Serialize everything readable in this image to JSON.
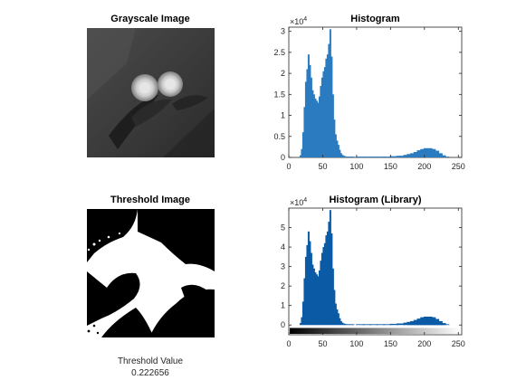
{
  "panels": {
    "gray": {
      "title": "Grayscale Image"
    },
    "thresh": {
      "title": "Threshold Image",
      "caption_label": "Threshold Value",
      "caption_value": "0.222656"
    }
  },
  "colors": {
    "bar": "#2b7bc0",
    "bar_dark": "#0b5aa6",
    "axis": "#262626"
  },
  "chart_data": [
    {
      "type": "bar",
      "title": "Histogram",
      "xlabel": "",
      "ylabel": "",
      "xlim": [
        0,
        255
      ],
      "ylim": [
        0,
        3.1
      ],
      "y_exponent": "×10",
      "y_exponent_power": "4",
      "xticks": [
        0,
        50,
        100,
        150,
        200,
        250
      ],
      "yticks": [
        0,
        0.5,
        1,
        1.5,
        2,
        2.5,
        3
      ],
      "ytick_labels": [
        "0",
        "0.5",
        "1",
        "1.5",
        "2",
        "2.5",
        "3"
      ],
      "x": [
        17,
        19,
        21,
        23,
        25,
        27,
        29,
        31,
        33,
        35,
        37,
        39,
        41,
        43,
        45,
        47,
        49,
        51,
        53,
        55,
        57,
        59,
        61,
        63,
        65,
        67,
        69,
        71,
        73,
        75,
        77,
        79,
        81,
        83,
        85,
        87,
        89,
        91,
        93,
        95,
        100,
        110,
        120,
        130,
        140,
        150,
        160,
        170,
        175,
        180,
        185,
        190,
        195,
        200,
        205,
        210,
        215,
        220,
        225
      ],
      "values": [
        0.05,
        0.2,
        0.6,
        1.2,
        1.8,
        2.1,
        2.45,
        2.2,
        1.9,
        1.6,
        1.5,
        1.4,
        1.35,
        1.3,
        1.45,
        1.7,
        1.9,
        2.05,
        2.15,
        2.35,
        2.45,
        2.7,
        3.05,
        2.4,
        1.5,
        0.9,
        0.55,
        0.4,
        0.3,
        0.18,
        0.1,
        0.06,
        0.04,
        0.03,
        0.02,
        0.02,
        0.02,
        0.02,
        0.02,
        0.02,
        0.02,
        0.02,
        0.02,
        0.02,
        0.02,
        0.03,
        0.04,
        0.06,
        0.08,
        0.1,
        0.13,
        0.17,
        0.2,
        0.22,
        0.2,
        0.16,
        0.1,
        0.05,
        0.02
      ]
    },
    {
      "type": "bar",
      "title": "Histogram (Library)",
      "xlabel": "",
      "ylabel": "",
      "xlim": [
        0,
        255
      ],
      "ylim": [
        -0.5,
        6
      ],
      "y_exponent": "×10",
      "y_exponent_power": "4",
      "xticks": [
        0,
        50,
        100,
        150,
        200,
        250
      ],
      "yticks": [
        0,
        1,
        2,
        3,
        4,
        5
      ],
      "ytick_labels": [
        "0",
        "1",
        "2",
        "3",
        "4",
        "5"
      ],
      "colorbar": true,
      "x": [
        17,
        19,
        21,
        23,
        25,
        27,
        29,
        31,
        33,
        35,
        37,
        39,
        41,
        43,
        45,
        47,
        49,
        51,
        53,
        55,
        57,
        59,
        61,
        63,
        65,
        67,
        69,
        71,
        73,
        75,
        77,
        79,
        81,
        83,
        85,
        87,
        89,
        91,
        93,
        95,
        100,
        110,
        120,
        130,
        140,
        150,
        160,
        170,
        175,
        180,
        185,
        190,
        195,
        200,
        205,
        210,
        215,
        220,
        225
      ],
      "values": [
        0.1,
        0.4,
        1.2,
        2.4,
        3.5,
        4.1,
        4.8,
        4.3,
        3.7,
        3.1,
        2.9,
        2.7,
        2.6,
        2.5,
        2.8,
        3.3,
        3.7,
        4.0,
        4.2,
        4.6,
        4.8,
        5.3,
        5.9,
        4.7,
        2.9,
        1.8,
        1.1,
        0.8,
        0.6,
        0.35,
        0.2,
        0.12,
        0.08,
        0.06,
        0.04,
        0.04,
        0.04,
        0.04,
        0.04,
        0.04,
        0.04,
        0.04,
        0.04,
        0.04,
        0.04,
        0.06,
        0.08,
        0.12,
        0.16,
        0.2,
        0.26,
        0.33,
        0.4,
        0.43,
        0.4,
        0.31,
        0.2,
        0.1,
        0.04
      ]
    }
  ]
}
